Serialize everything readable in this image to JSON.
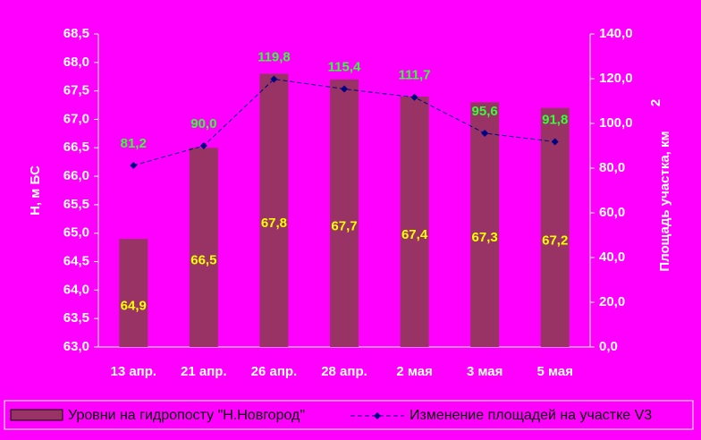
{
  "chart_data": {
    "type": "bar",
    "categories": [
      "13 апр.",
      "21 апр.",
      "26 апр.",
      "28 апр.",
      "2 мая",
      "3 мая",
      "5 мая"
    ],
    "series": [
      {
        "name": "Уровни на гидропосту \"Н.Новгород\"",
        "type": "bar",
        "color": "#993366",
        "values": [
          64.9,
          66.5,
          67.8,
          67.7,
          67.4,
          67.3,
          67.2
        ],
        "value_labels": [
          "64,9",
          "66,5",
          "67,8",
          "67,7",
          "67,4",
          "67,3",
          "67,2"
        ],
        "label_color": "#ffff00"
      },
      {
        "name": "Изменение площадей на участке V3",
        "type": "line",
        "axis": "y2",
        "color": "#000080",
        "values": [
          81.2,
          90.0,
          119.8,
          115.4,
          111.7,
          95.6,
          91.8
        ],
        "value_labels": [
          "81,2",
          "90,0",
          "119,8",
          "115,4",
          "111,7",
          "95,6",
          "91,8"
        ],
        "label_color": "#33ff33"
      }
    ],
    "ylabel": "Н, м БС",
    "y2label": "Площадь участка, км",
    "y2label_sup": "2",
    "ylim": [
      63.0,
      68.5
    ],
    "yticks": [
      {
        "value": 63.0,
        "label": "63,0"
      },
      {
        "value": 63.5,
        "label": "63,5"
      },
      {
        "value": 64.0,
        "label": "64,0"
      },
      {
        "value": 64.5,
        "label": "64,5"
      },
      {
        "value": 65.0,
        "label": "65,0"
      },
      {
        "value": 65.5,
        "label": "65,5"
      },
      {
        "value": 66.0,
        "label": "66,0"
      },
      {
        "value": 66.5,
        "label": "66,5"
      },
      {
        "value": 67.0,
        "label": "67,0"
      },
      {
        "value": 67.5,
        "label": "67,5"
      },
      {
        "value": 68.0,
        "label": "68,0"
      },
      {
        "value": 68.5,
        "label": "68,5"
      }
    ],
    "y2lim": [
      0,
      140
    ],
    "y2ticks": [
      {
        "value": 0,
        "label": "0,0"
      },
      {
        "value": 20,
        "label": "20,0"
      },
      {
        "value": 40,
        "label": "40,0"
      },
      {
        "value": 60,
        "label": "60,0"
      },
      {
        "value": 80,
        "label": "80,0"
      },
      {
        "value": 100,
        "label": "100,0"
      },
      {
        "value": 120,
        "label": "120,0"
      },
      {
        "value": 140,
        "label": "140,0"
      }
    ],
    "grid": false,
    "legend": "bottom"
  }
}
